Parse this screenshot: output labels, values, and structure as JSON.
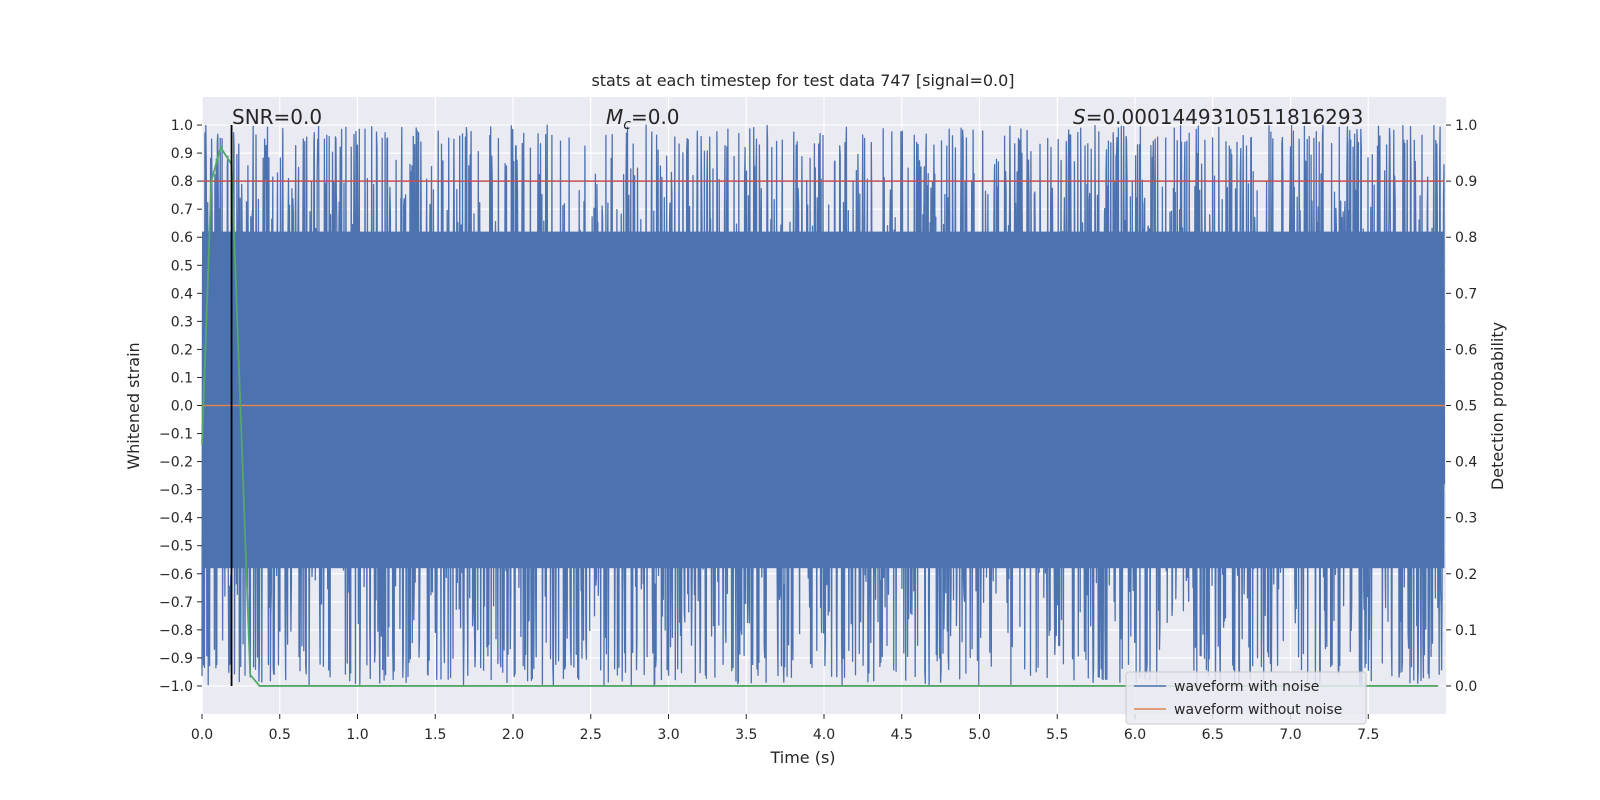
{
  "chart_data": {
    "type": "line",
    "title": "stats at each timestep for test data 747 [signal=0.0]",
    "xlabel": "Time (s)",
    "ylabel": "Whitened strain",
    "y2label": "Detection probability",
    "xlim": [
      0.0,
      8.0
    ],
    "ylim": [
      -1.1,
      1.1
    ],
    "y2lim": [
      -0.05,
      1.05
    ],
    "x_ticks": [
      0.0,
      0.5,
      1.0,
      1.5,
      2.0,
      2.5,
      3.0,
      3.5,
      4.0,
      4.5,
      5.0,
      5.5,
      6.0,
      6.5,
      7.0,
      7.5
    ],
    "x_tick_labels": [
      "0.0",
      "0.5",
      "1.0",
      "1.5",
      "2.0",
      "2.5",
      "3.0",
      "3.5",
      "4.0",
      "4.5",
      "5.0",
      "5.5",
      "6.0",
      "6.5",
      "7.0",
      "7.5"
    ],
    "y_ticks": [
      1.0,
      0.9,
      0.8,
      0.7,
      0.6,
      0.5,
      0.4,
      0.3,
      0.2,
      0.1,
      0.0,
      -0.1,
      -0.2,
      -0.3,
      -0.4,
      -0.5,
      -0.6,
      -0.7,
      -0.8,
      -0.9,
      -1.0
    ],
    "y_tick_labels": [
      "1.0",
      "0.9",
      "0.8",
      "0.7",
      "0.6",
      "0.5",
      "0.4",
      "0.3",
      "0.2",
      "0.1",
      "0.0",
      "−0.1",
      "−0.2",
      "−0.3",
      "−0.4",
      "−0.5",
      "−0.6",
      "−0.7",
      "−0.8",
      "−0.9",
      "−1.0"
    ],
    "y2_ticks": [
      1.0,
      0.9,
      0.8,
      0.7,
      0.6,
      0.5,
      0.4,
      0.3,
      0.2,
      0.1,
      0.0
    ],
    "y2_tick_labels": [
      "1.0",
      "0.9",
      "0.8",
      "0.7",
      "0.6",
      "0.5",
      "0.4",
      "0.3",
      "0.2",
      "0.1",
      "0.0"
    ],
    "grid": true,
    "annotations": {
      "snr": "SNR=0.0",
      "mc_symbol": "M",
      "mc_sub": "c",
      "mc_value": "=0.0",
      "s_symbol": "S",
      "s_value": "=0.0001449310511816293"
    },
    "series": [
      {
        "name": "waveform with noise",
        "color": "#4c72b0",
        "kind": "noise",
        "range": [
          -1.0,
          1.0
        ]
      },
      {
        "name": "waveform without noise",
        "color": "#dd8452",
        "kind": "line",
        "x": [
          0.0,
          7.99
        ],
        "y": [
          0.0,
          0.0
        ]
      },
      {
        "name": "detection probability",
        "color": "#55a868",
        "axis": "right",
        "x": [
          0.0,
          0.06,
          0.12,
          0.19,
          0.24,
          0.31,
          0.37,
          0.45,
          7.95
        ],
        "y": [
          0.43,
          0.9,
          0.96,
          0.93,
          0.55,
          0.02,
          0.0,
          0.0,
          0.0
        ]
      },
      {
        "name": "threshold",
        "color": "#c44e52",
        "axis": "right",
        "x": [
          0.0,
          7.99
        ],
        "y": [
          0.9,
          0.9
        ]
      },
      {
        "name": "marker",
        "color": "#000000",
        "kind": "vline",
        "x": 0.19
      }
    ],
    "legend": {
      "placement": "bottom-right",
      "entries": [
        {
          "label": "waveform with noise",
          "color": "#4c72b0"
        },
        {
          "label": "waveform without noise",
          "color": "#dd8452"
        }
      ]
    }
  }
}
